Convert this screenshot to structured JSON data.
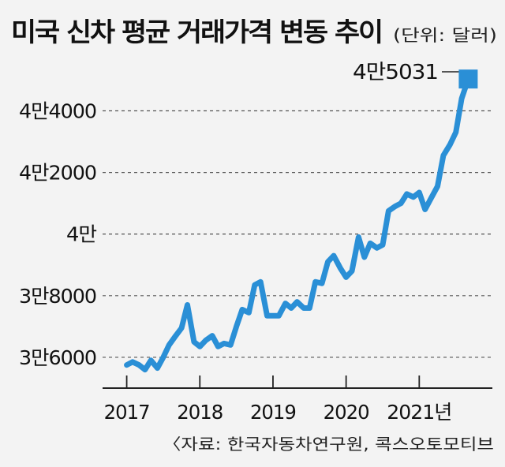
{
  "chart_data": {
    "type": "line",
    "title": "미국 신차 평균 거래가격 변동 추이",
    "unit_note": "(단위: 달러)",
    "source": "〈자료: 한국자동차연구원, 콕스오토모티브",
    "x_tick_labels": [
      "2017",
      "2018",
      "2019",
      "2020",
      "2021년"
    ],
    "y_tick_labels": [
      "3만6000",
      "3만8000",
      "4만",
      "4만2000",
      "4만4000"
    ],
    "y_ticks": [
      36000,
      38000,
      40000,
      42000,
      44000
    ],
    "ylim": [
      35000,
      45600
    ],
    "xlim": [
      2016.67,
      2022.0
    ],
    "grid": true,
    "end_label": "4만5031",
    "accent_color": "#2a8fd6",
    "series": [
      {
        "x": [
          2017.0,
          2017.08,
          2017.17,
          2017.25,
          2017.33,
          2017.42,
          2017.5,
          2017.58,
          2017.67,
          2017.75,
          2017.83,
          2017.92,
          2018.0,
          2018.08,
          2018.17,
          2018.25,
          2018.33,
          2018.42,
          2018.5,
          2018.58,
          2018.67,
          2018.75,
          2018.83,
          2018.92,
          2019.0,
          2019.08,
          2019.17,
          2019.25,
          2019.33,
          2019.42,
          2019.5,
          2019.58,
          2019.67,
          2019.75,
          2019.83,
          2019.92,
          2020.0,
          2020.08,
          2020.17,
          2020.25,
          2020.33,
          2020.42,
          2020.5,
          2020.58,
          2020.67,
          2020.75,
          2020.83,
          2020.92,
          2021.0,
          2021.08,
          2021.17,
          2021.25,
          2021.33,
          2021.42,
          2021.5,
          2021.58,
          2021.67
        ],
        "values": [
          35750,
          35850,
          35750,
          35600,
          35900,
          35650,
          36000,
          36400,
          36700,
          36950,
          37700,
          36500,
          36350,
          36550,
          36700,
          36350,
          36450,
          36400,
          37000,
          37550,
          37450,
          38350,
          38450,
          37350,
          37350,
          37350,
          37750,
          37600,
          37800,
          37600,
          37600,
          38450,
          38400,
          39100,
          39300,
          38900,
          38600,
          38800,
          39900,
          39250,
          39700,
          39550,
          39650,
          40750,
          40900,
          41000,
          41300,
          41200,
          41350,
          40800,
          41200,
          41550,
          42550,
          42900,
          43300,
          44400,
          45031
        ]
      }
    ]
  }
}
